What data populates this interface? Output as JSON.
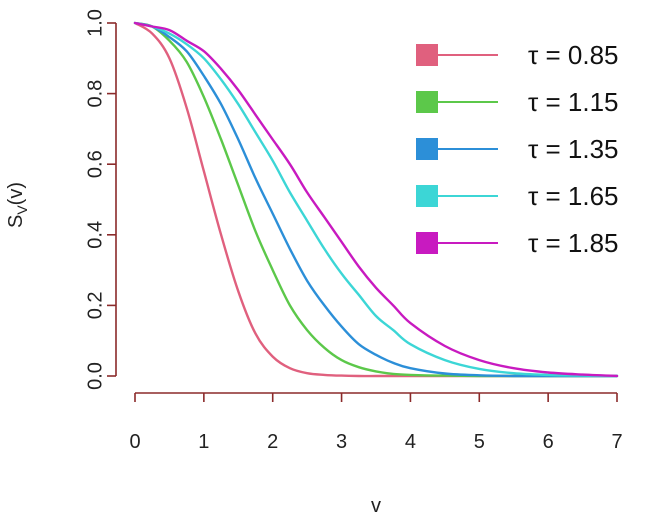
{
  "chart_data": {
    "type": "line",
    "title": "",
    "xlabel": "v",
    "ylabel": "S",
    "ylabel_sub": "V",
    "ylabel_suffix": "(v)",
    "xlim": [
      0,
      7
    ],
    "ylim": [
      0,
      1
    ],
    "x_ticks": [
      "0",
      "1",
      "2",
      "3",
      "4",
      "5",
      "6",
      "7"
    ],
    "y_ticks": [
      "0.0",
      "0.2",
      "0.4",
      "0.6",
      "0.8",
      "1.0"
    ],
    "grid": false,
    "legend_position": "top-right",
    "x": [
      0,
      0.25,
      0.5,
      0.75,
      1,
      1.25,
      1.5,
      1.75,
      2,
      2.25,
      2.5,
      2.75,
      3,
      3.25,
      3.5,
      3.75,
      4,
      4.5,
      5,
      5.5,
      6,
      6.5,
      7
    ],
    "series": [
      {
        "name": "τ = 0.85",
        "color": "#e0607e",
        "values": [
          1.0,
          0.97,
          0.9,
          0.76,
          0.58,
          0.4,
          0.24,
          0.12,
          0.055,
          0.022,
          0.008,
          0.003,
          0.001,
          0.0,
          0.0,
          0.0,
          0.0,
          0.0,
          0.0,
          0.0,
          0.0,
          0.0,
          0.0
        ]
      },
      {
        "name": "τ = 1.15",
        "color": "#5cc84a",
        "values": [
          1.0,
          0.99,
          0.95,
          0.89,
          0.79,
          0.67,
          0.54,
          0.41,
          0.3,
          0.2,
          0.13,
          0.08,
          0.045,
          0.025,
          0.013,
          0.006,
          0.003,
          0.001,
          0.0,
          0.0,
          0.0,
          0.0,
          0.0
        ]
      },
      {
        "name": "τ = 1.35",
        "color": "#2c8fd8",
        "values": [
          1.0,
          0.99,
          0.96,
          0.92,
          0.85,
          0.77,
          0.67,
          0.56,
          0.46,
          0.36,
          0.27,
          0.2,
          0.14,
          0.09,
          0.06,
          0.037,
          0.022,
          0.007,
          0.002,
          0.0,
          0.0,
          0.0,
          0.0
        ]
      },
      {
        "name": "τ = 1.65",
        "color": "#3cd6d6",
        "values": [
          1.0,
          0.99,
          0.97,
          0.94,
          0.9,
          0.84,
          0.77,
          0.69,
          0.61,
          0.52,
          0.44,
          0.36,
          0.29,
          0.23,
          0.17,
          0.13,
          0.09,
          0.045,
          0.02,
          0.008,
          0.003,
          0.001,
          0.0
        ]
      },
      {
        "name": "τ = 1.85",
        "color": "#c81ac0",
        "values": [
          1.0,
          0.99,
          0.98,
          0.95,
          0.92,
          0.87,
          0.81,
          0.74,
          0.67,
          0.6,
          0.52,
          0.45,
          0.38,
          0.31,
          0.25,
          0.2,
          0.15,
          0.085,
          0.045,
          0.022,
          0.01,
          0.004,
          0.0
        ]
      }
    ]
  }
}
